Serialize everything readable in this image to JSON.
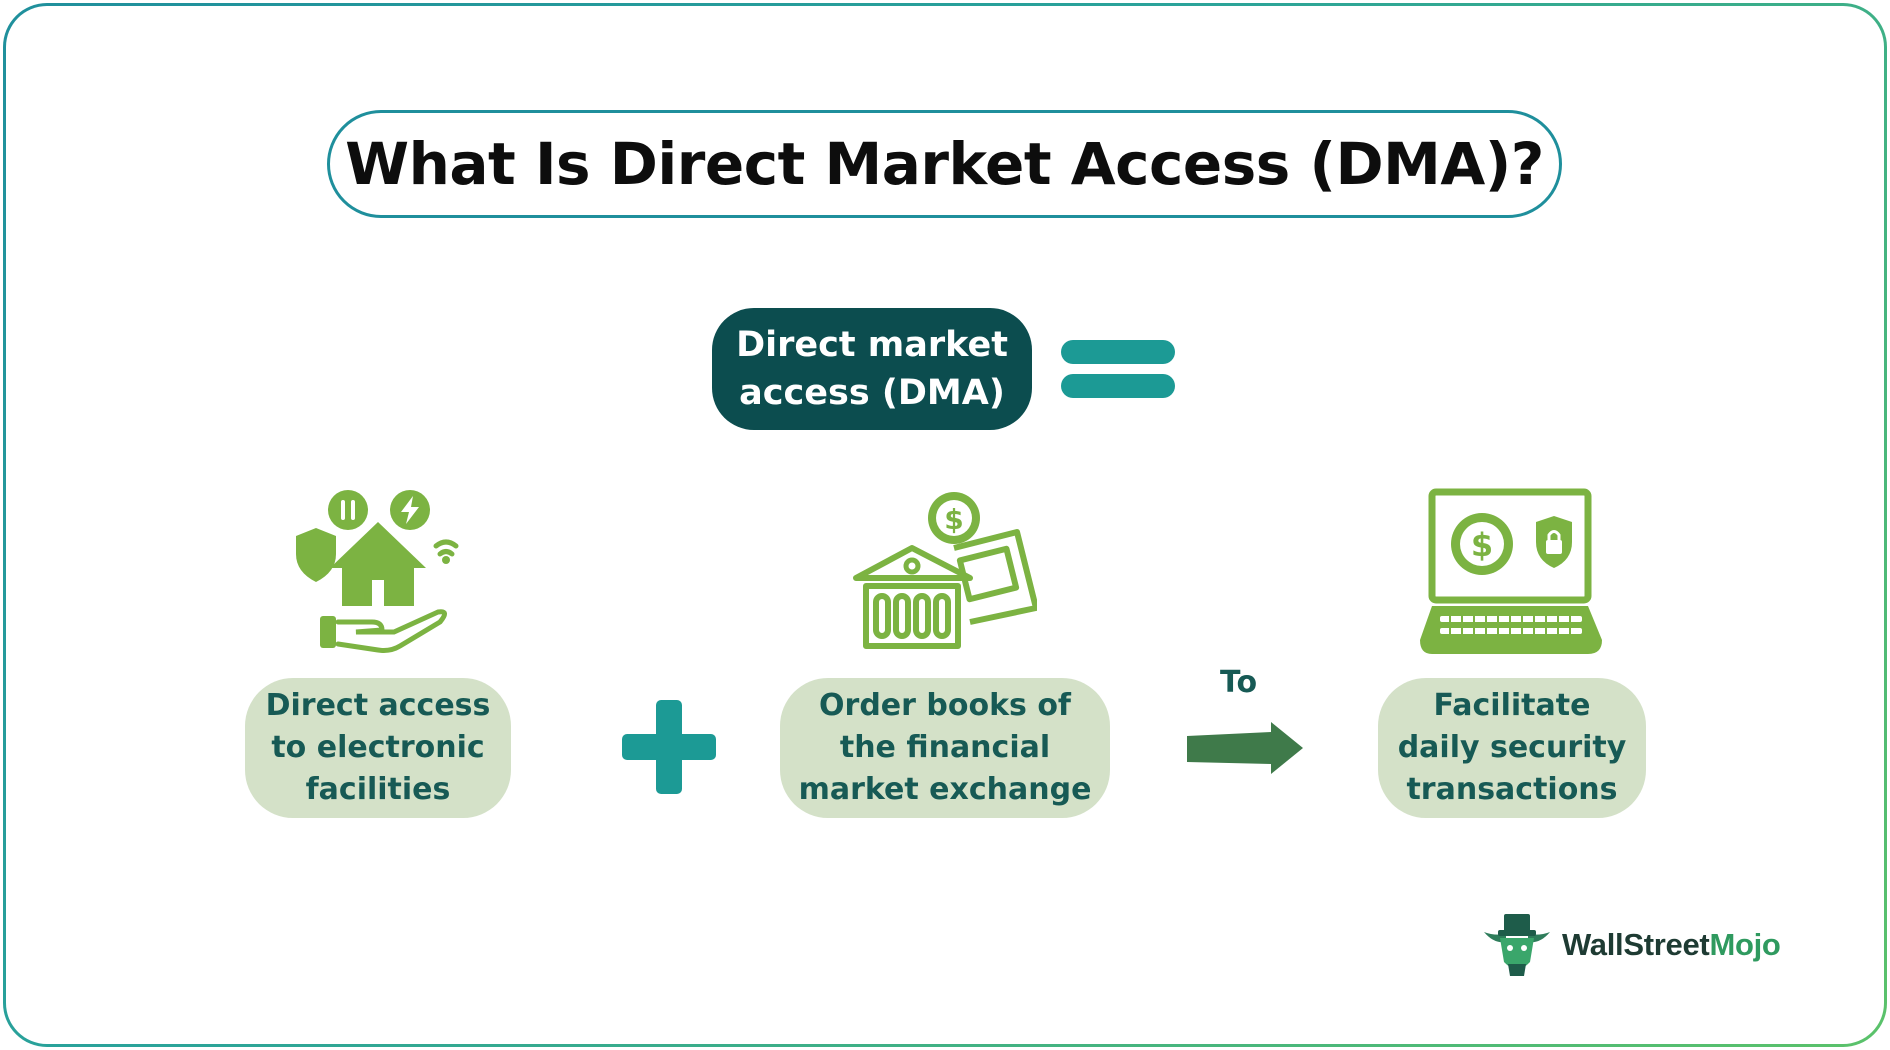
{
  "title": "What Is Direct Market Access (DMA)?",
  "definition_term": {
    "line1": "Direct market",
    "line2": "access (DMA)"
  },
  "components": [
    {
      "icon": "home-in-hand-icon",
      "lines": [
        "Direct access",
        "to electronic",
        "facilities"
      ]
    },
    {
      "icon": "bank-money-icon",
      "lines": [
        "Order books of",
        "the financial",
        "market exchange"
      ]
    }
  ],
  "connector_to": "To",
  "result": {
    "icon": "laptop-dollar-icon",
    "lines": [
      "Facilitate",
      "daily security",
      "transactions"
    ]
  },
  "logo": {
    "part1": "WallStreet",
    "part2": "Mojo"
  },
  "colors": {
    "dark_teal": "#0c4d4f",
    "teal": "#1c9a95",
    "icon_green": "#7cb342",
    "box_fill": "#d4e1c8",
    "box_text": "#175a55",
    "arrow": "#3f7a4a"
  }
}
